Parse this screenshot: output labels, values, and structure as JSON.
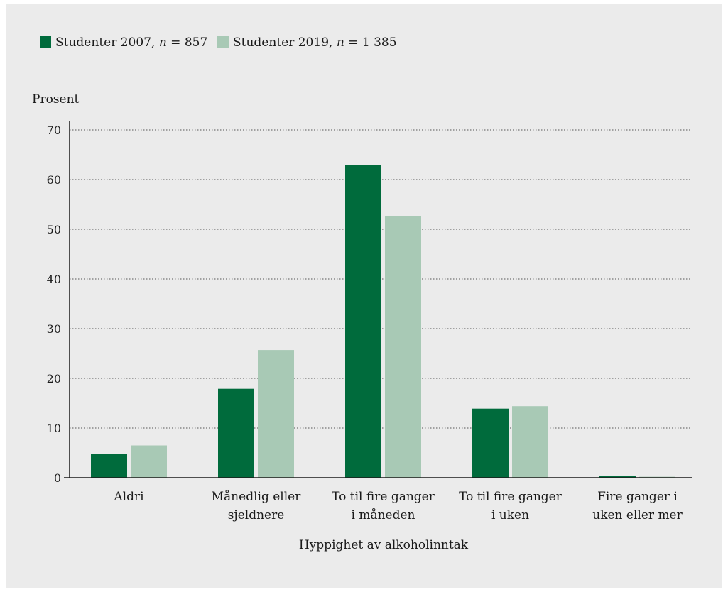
{
  "chart_data": {
    "type": "bar",
    "title": "",
    "ylabel": "Prosent",
    "xlabel": "Hyppighet av alkoholinntak",
    "ylim": [
      0,
      70
    ],
    "yticks": [
      0,
      10,
      20,
      30,
      40,
      50,
      60,
      70
    ],
    "grid": "horizontal-dotted",
    "legend_position": "top-left",
    "categories": [
      [
        "Aldri"
      ],
      [
        "Månedlig eller",
        "sjeldnere"
      ],
      [
        "To til fire ganger",
        "i måneden"
      ],
      [
        "To til fire ganger",
        "i uken"
      ],
      [
        "Fire ganger i",
        "uken eller mer"
      ]
    ],
    "series": [
      {
        "name": "Studenter 2007",
        "n_label": "857",
        "color": "#006b3c",
        "values": [
          4.8,
          17.9,
          62.9,
          13.9,
          0.4
        ]
      },
      {
        "name": "Studenter 2019",
        "n_label": "1 385",
        "color": "#a8c9b5",
        "values": [
          6.5,
          25.7,
          52.7,
          14.4,
          0.2
        ]
      }
    ]
  }
}
